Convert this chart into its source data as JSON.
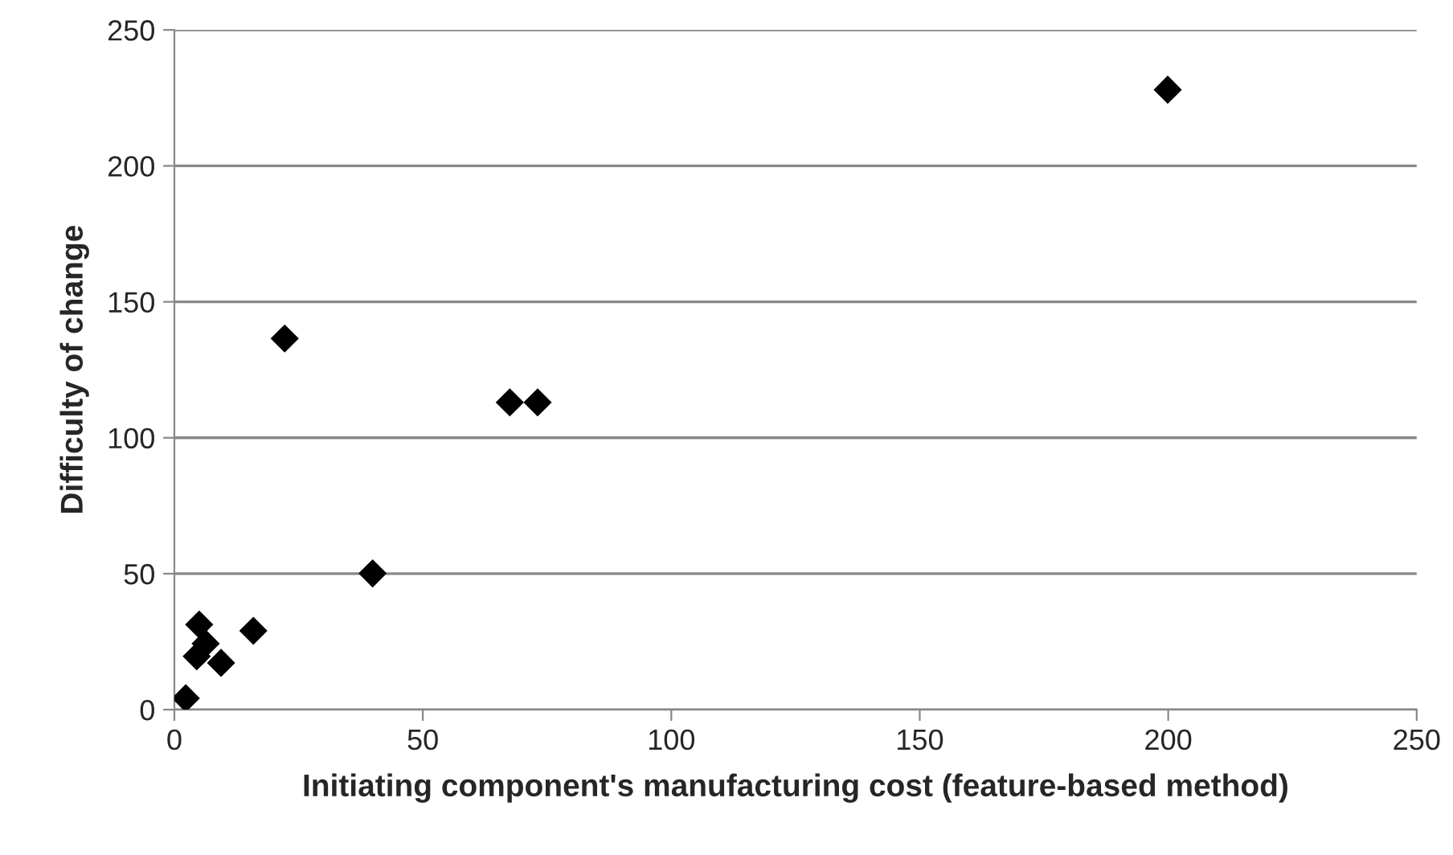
{
  "chart_data": {
    "type": "scatter",
    "xlabel": "Initiating component's manufacturing cost (feature-based method)",
    "ylabel": "Difficulty of change",
    "x": [
      199.9,
      22.2,
      67.5,
      73.1,
      39.9,
      15.9,
      5.0,
      6.3,
      4.5,
      9.4,
      2.3
    ],
    "values": [
      228,
      136.5,
      113,
      113,
      50.1,
      29,
      31.3,
      24.3,
      19.6,
      17.2,
      4.2
    ],
    "color": "#000000",
    "marker": "diamond",
    "xlim": [
      0,
      250
    ],
    "xticks": [
      0,
      50,
      100,
      150,
      200,
      250
    ],
    "ylim": [
      0,
      250
    ],
    "yticks": [
      0,
      50,
      100,
      150,
      200,
      250
    ],
    "grid": "y",
    "legend": false
  }
}
